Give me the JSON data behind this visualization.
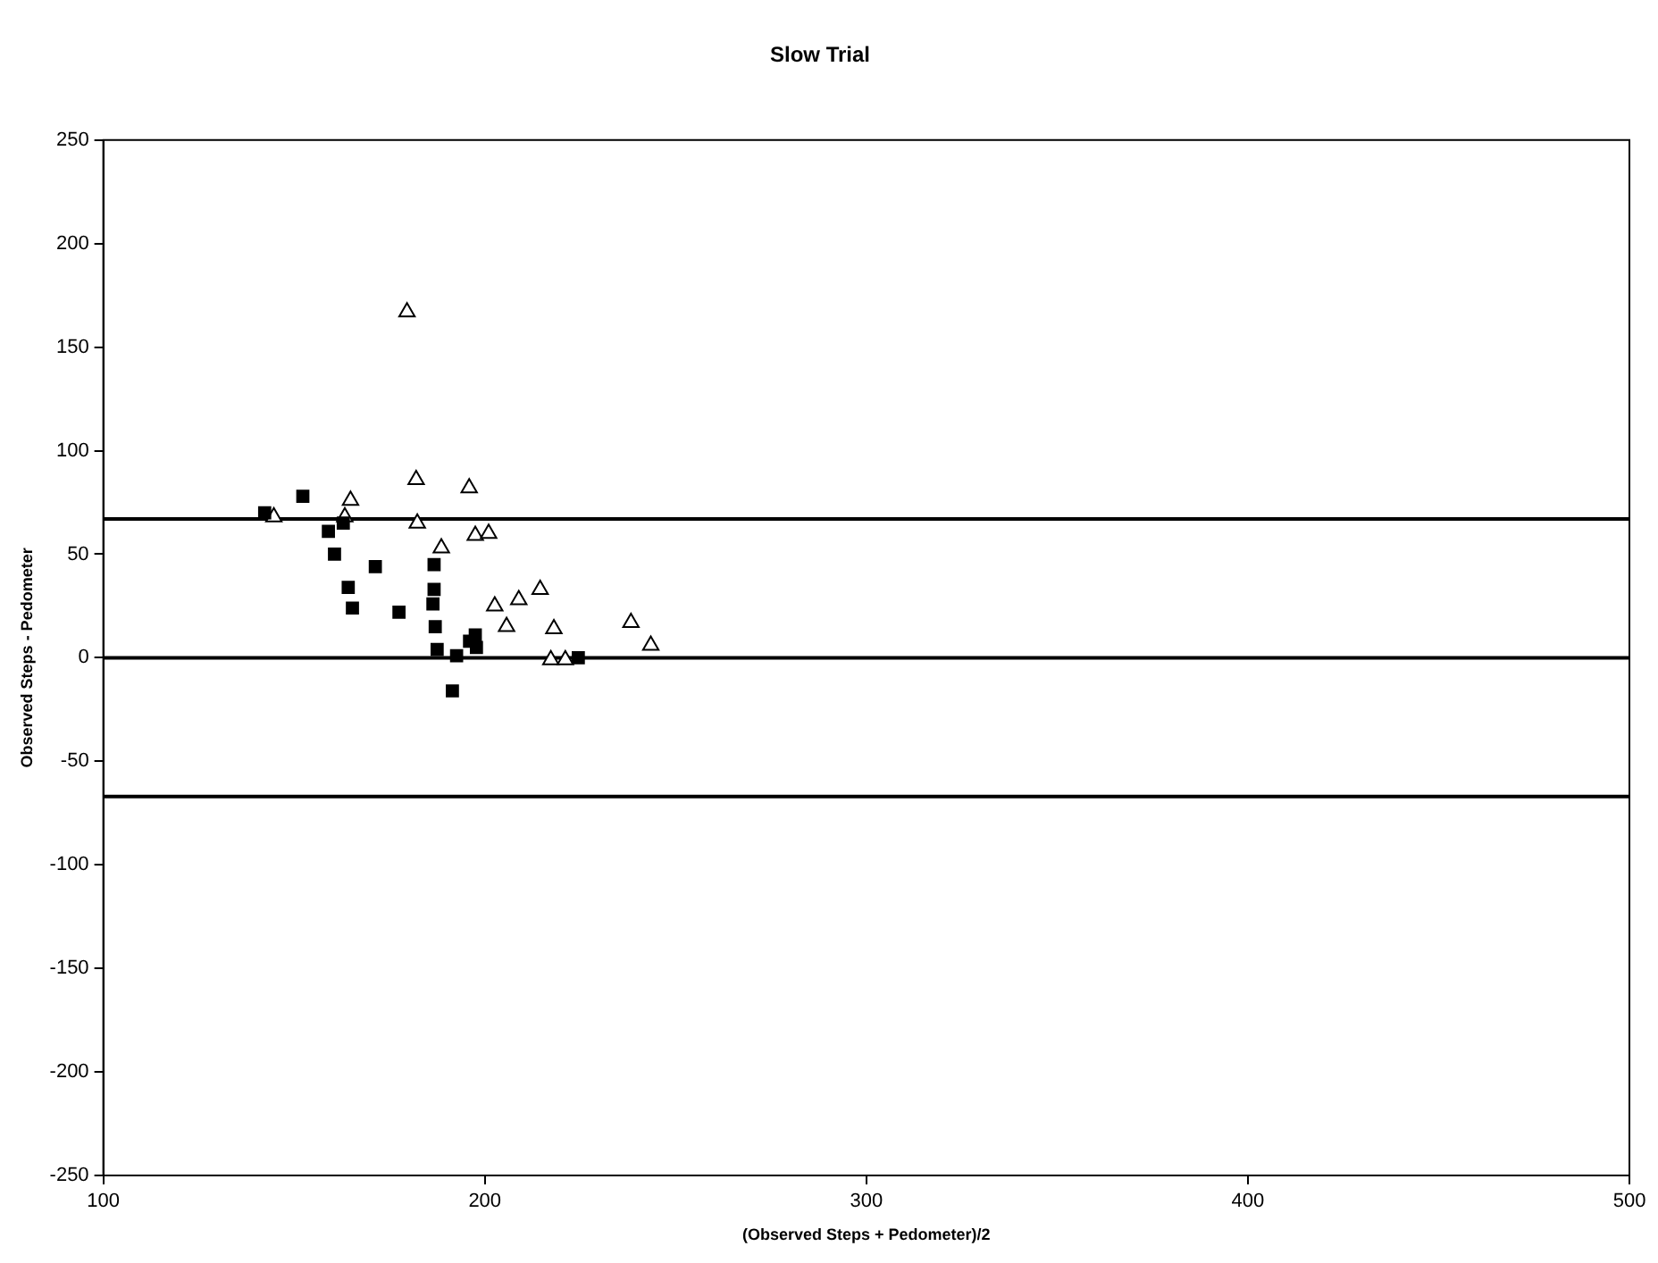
{
  "chart_data": {
    "type": "scatter",
    "title": "Slow Trial",
    "xlabel": "(Observed Steps + Pedometer)/2",
    "ylabel": "Observed Steps - Pedometer",
    "xlim": [
      100,
      500
    ],
    "xticks": [
      100,
      200,
      300,
      400,
      500
    ],
    "ylim": [
      -250,
      250
    ],
    "yticks": [
      -250,
      -200,
      -150,
      -100,
      -50,
      0,
      50,
      100,
      150,
      200,
      250
    ],
    "grid": false,
    "legend": false,
    "series": [
      {
        "color": "#000000",
        "marker": "square",
        "x": [
          142.3,
          152.3,
          159,
          162.9,
          160.6,
          164.2,
          165.3,
          171.3,
          177.5,
          186.7,
          186.7,
          186.4,
          187,
          187.5,
          191.5,
          192.6,
          197.5,
          197.8,
          196,
          224.5
        ],
        "values": [
          70,
          78,
          61,
          65,
          50,
          34,
          24,
          44,
          22,
          45,
          33,
          26,
          15,
          4,
          -16,
          1,
          11,
          5,
          8,
          0
        ]
      },
      {
        "color": "#000000",
        "marker": "triangle",
        "x": [
          179.6,
          144.7,
          164.8,
          163.3,
          182,
          182.3,
          195.9,
          188.6,
          197.5,
          201,
          202.6,
          208.9,
          214.5,
          205.7,
          218.1,
          217.3,
          221.1,
          238.3,
          243.5
        ],
        "values": [
          167,
          68,
          76,
          68,
          86,
          65,
          82,
          53,
          59,
          60,
          25,
          28,
          33,
          15,
          14,
          -1,
          -1,
          17,
          6
        ]
      }
    ],
    "ref_lines": [
      {
        "axis": "y",
        "value": 67,
        "color": "#000000"
      },
      {
        "axis": "y",
        "value": 0,
        "color": "#000000"
      },
      {
        "axis": "y",
        "value": -67,
        "color": "#000000"
      }
    ]
  }
}
